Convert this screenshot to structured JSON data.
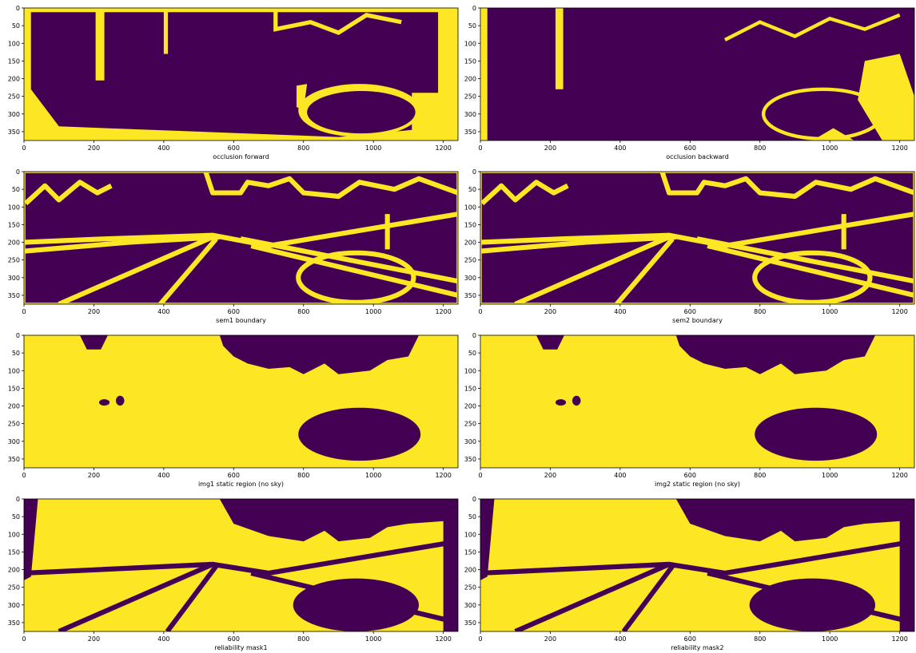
{
  "chart_data": [
    {
      "type": "image",
      "xlabel": "occlusion forward",
      "xlim": [
        0,
        1242
      ],
      "ylim": [
        375,
        0
      ],
      "xticks": [
        0,
        200,
        400,
        600,
        800,
        1000,
        1200
      ],
      "yticks": [
        0,
        50,
        100,
        150,
        200,
        250,
        300,
        350
      ]
    },
    {
      "type": "image",
      "xlabel": "occlusion backward",
      "xlim": [
        0,
        1242
      ],
      "ylim": [
        375,
        0
      ],
      "xticks": [
        0,
        200,
        400,
        600,
        800,
        1000,
        1200
      ],
      "yticks": [
        0,
        50,
        100,
        150,
        200,
        250,
        300,
        350
      ]
    },
    {
      "type": "image",
      "xlabel": "sem1 boundary",
      "xlim": [
        0,
        1242
      ],
      "ylim": [
        375,
        0
      ],
      "xticks": [
        0,
        200,
        400,
        600,
        800,
        1000,
        1200
      ],
      "yticks": [
        0,
        50,
        100,
        150,
        200,
        250,
        300,
        350
      ]
    },
    {
      "type": "image",
      "xlabel": "sem2 boundary",
      "xlim": [
        0,
        1242
      ],
      "ylim": [
        375,
        0
      ],
      "xticks": [
        0,
        200,
        400,
        600,
        800,
        1000,
        1200
      ],
      "yticks": [
        0,
        50,
        100,
        150,
        200,
        250,
        300,
        350
      ]
    },
    {
      "type": "image",
      "xlabel": "img1 static region (no sky)",
      "xlim": [
        0,
        1242
      ],
      "ylim": [
        375,
        0
      ],
      "xticks": [
        0,
        200,
        400,
        600,
        800,
        1000,
        1200
      ],
      "yticks": [
        0,
        50,
        100,
        150,
        200,
        250,
        300,
        350
      ]
    },
    {
      "type": "image",
      "xlabel": "img2 static region (no sky)",
      "xlim": [
        0,
        1242
      ],
      "ylim": [
        375,
        0
      ],
      "xticks": [
        0,
        200,
        400,
        600,
        800,
        1000,
        1200
      ],
      "yticks": [
        0,
        50,
        100,
        150,
        200,
        250,
        300,
        350
      ]
    },
    {
      "type": "image",
      "xlabel": "reliability mask1",
      "xlim": [
        0,
        1242
      ],
      "ylim": [
        375,
        0
      ],
      "xticks": [
        0,
        200,
        400,
        600,
        800,
        1000,
        1200
      ],
      "yticks": [
        0,
        50,
        100,
        150,
        200,
        250,
        300,
        350
      ]
    },
    {
      "type": "image",
      "xlabel": "reliability mask2",
      "xlim": [
        0,
        1242
      ],
      "ylim": [
        375,
        0
      ],
      "xticks": [
        0,
        200,
        400,
        600,
        800,
        1000,
        1200
      ],
      "yticks": [
        0,
        50,
        100,
        150,
        200,
        250,
        300,
        350
      ]
    }
  ]
}
